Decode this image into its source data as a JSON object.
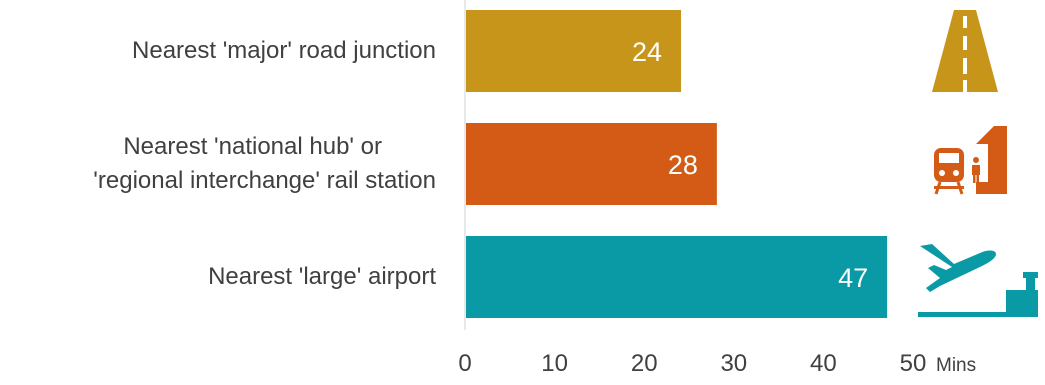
{
  "chart_data": {
    "type": "bar",
    "orientation": "horizontal",
    "categories": [
      "Nearest 'major' road junction",
      "Nearest 'national hub' or 'regional interchange' rail station",
      "Nearest 'large' airport"
    ],
    "category_lines": [
      [
        "Nearest 'major' road junction"
      ],
      [
        "Nearest 'national hub' or",
        "'regional interchange' rail station"
      ],
      [
        "Nearest 'large' airport"
      ]
    ],
    "values": [
      24,
      28,
      47
    ],
    "bar_colors": [
      "#c8951b",
      "#d45b16",
      "#0a9aa6"
    ],
    "icons": [
      "road-icon",
      "train-station-icon",
      "airport-icon"
    ],
    "xlim": [
      0,
      50
    ],
    "xticks": [
      0,
      10,
      20,
      30,
      40,
      50
    ],
    "xunit": "Mins",
    "axis_color": "#d0d0d0",
    "grid": false,
    "legend": "none"
  }
}
